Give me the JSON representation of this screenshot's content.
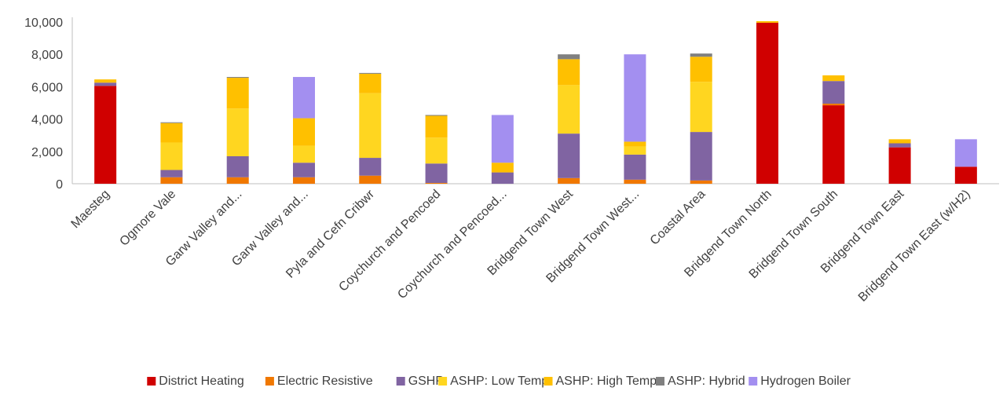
{
  "chart_data": {
    "type": "bar",
    "stacked": true,
    "title": "",
    "xlabel": "",
    "ylabel": "",
    "ylim": [
      0,
      10000
    ],
    "y_ticks": [
      0,
      2000,
      4000,
      6000,
      8000,
      10000
    ],
    "y_tick_labels": [
      "0",
      "2,000",
      "4,000",
      "6,000",
      "8,000",
      "10,000"
    ],
    "grid": false,
    "legend_position": "bottom",
    "categories": [
      "Maesteg",
      "Ogmore Vale",
      "Garw Valley and...",
      "Garw Valley and...",
      "Pyla and Cefn Cribwr",
      "Coychurch and Pencoed",
      "Coychurch and Pencoed...",
      "Bridgend Town West",
      "Bridgend Town West...",
      "Coastal Area",
      "Bridgend Town North",
      "Bridgend Town South",
      "Bridgend Town East",
      "Bridgend Town East (w/H2)"
    ],
    "series": [
      {
        "name": "District Heating",
        "color": "#d00000",
        "values": [
          6050,
          0,
          0,
          0,
          0,
          0,
          0,
          0,
          0,
          0,
          9950,
          4850,
          2250,
          1050
        ]
      },
      {
        "name": "Electric Resistive",
        "color": "#f07800",
        "values": [
          0,
          400,
          400,
          400,
          500,
          50,
          0,
          350,
          250,
          200,
          0,
          100,
          0,
          0
        ]
      },
      {
        "name": "GSHP",
        "color": "#8064a2",
        "values": [
          200,
          450,
          1300,
          900,
          1100,
          1200,
          700,
          2750,
          1550,
          3000,
          0,
          1400,
          250,
          0
        ]
      },
      {
        "name": "ASHP: Low Temp",
        "color": "#ffd620",
        "values": [
          0,
          1700,
          2950,
          1050,
          4000,
          1600,
          0,
          3000,
          500,
          3100,
          0,
          0,
          0,
          0
        ]
      },
      {
        "name": "ASHP: High Temp",
        "color": "#ffc000",
        "values": [
          200,
          1200,
          1900,
          1700,
          1200,
          1350,
          600,
          1600,
          300,
          1550,
          100,
          350,
          250,
          0
        ]
      },
      {
        "name": "ASHP: Hybrid",
        "color": "#808080",
        "values": [
          0,
          50,
          50,
          0,
          50,
          50,
          0,
          300,
          0,
          200,
          0,
          0,
          0,
          0
        ]
      },
      {
        "name": "Hydrogen Boiler",
        "color": "#a38ff0",
        "values": [
          0,
          0,
          0,
          2550,
          0,
          0,
          2950,
          0,
          5400,
          0,
          0,
          0,
          0,
          1700
        ]
      }
    ]
  }
}
